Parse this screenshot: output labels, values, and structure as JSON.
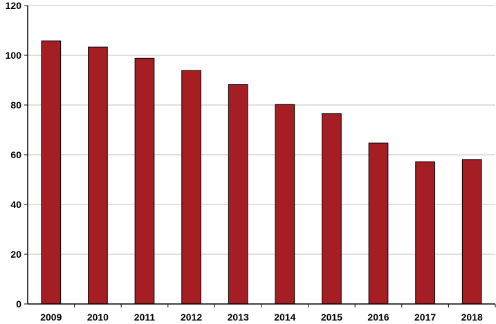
{
  "chart_data": {
    "type": "bar",
    "title": "",
    "xlabel": "",
    "ylabel": "",
    "categories": [
      "2009",
      "2010",
      "2011",
      "2012",
      "2013",
      "2014",
      "2015",
      "2016",
      "2017",
      "2018"
    ],
    "values": [
      105.8,
      103.3,
      98.8,
      93.9,
      88.2,
      80.2,
      76.5,
      64.7,
      57.2,
      58.1
    ],
    "ylim": [
      0,
      120
    ],
    "yticks": [
      0,
      20,
      40,
      60,
      80,
      100,
      120
    ],
    "ytick_labels": [
      "0",
      "20",
      "40",
      "60",
      "80",
      "100",
      "120"
    ],
    "grid": true,
    "legend": "none",
    "colors": {
      "bar": "#A51E24",
      "bar_edge": "#000000",
      "grid": "#BFBFBF",
      "axis": "#000000"
    }
  }
}
